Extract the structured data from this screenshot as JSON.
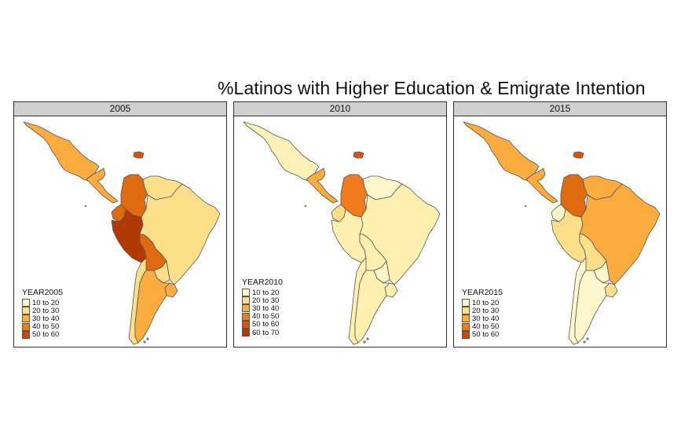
{
  "title": "%Latinos with Higher Education & Emigrate Intention",
  "colors": {
    "c1": "#fff7cc",
    "c2": "#fddf8a",
    "c3": "#fbac3f",
    "c4": "#f07a1c",
    "c5": "#d9530c",
    "c6": "#b03a05",
    "border": "#555555"
  },
  "panels": [
    {
      "strip": "2005",
      "legend": {
        "title": "YEAR2005",
        "items": [
          {
            "label": "10 to 20",
            "color": "#fff7cc"
          },
          {
            "label": "20 to 30",
            "color": "#fddf8a"
          },
          {
            "label": "30 to 40",
            "color": "#fbac3f"
          },
          {
            "label": "40 to 50",
            "color": "#f07a1c"
          },
          {
            "label": "50 to 60",
            "color": "#c9480a"
          }
        ]
      },
      "fills": {
        "mexico": "#fbac3f",
        "centralam": "#fbac3f",
        "caribbean": "#d9530c",
        "colombia": "#e06a10",
        "venezuela": "#fddf8a",
        "ecuador": "#e06a10",
        "peru": "#b03a05",
        "brazil": "#fddf8a",
        "bolivia": "#e06a10",
        "paraguay": "#fddf8a",
        "uruguay": "#fbac3f",
        "argentina": "#fbac3f",
        "chile": "#fddf8a"
      }
    },
    {
      "strip": "2010",
      "legend": {
        "title": "YEAR2010",
        "items": [
          {
            "label": "10 to 20",
            "color": "#fff7cc"
          },
          {
            "label": "20 to 30",
            "color": "#fddf8a"
          },
          {
            "label": "30 to 40",
            "color": "#fbac3f"
          },
          {
            "label": "40 to 50",
            "color": "#f07a1c"
          },
          {
            "label": "50 to 60",
            "color": "#d9530c"
          },
          {
            "label": "60 to 70",
            "color": "#b03a05"
          }
        ]
      },
      "fills": {
        "mexico": "#fff2b8",
        "centralam": "#fbac3f",
        "caribbean": "#d9530c",
        "colombia": "#f07a1c",
        "venezuela": "#fff7cc",
        "ecuador": "#fddf8a",
        "peru": "#fff0b0",
        "brazil": "#fff0b0",
        "bolivia": "#fff0b0",
        "paraguay": "#fff7cc",
        "uruguay": "#fff0b0",
        "argentina": "#fff0b0",
        "chile": "#fff0b0"
      }
    },
    {
      "strip": "2015",
      "legend": {
        "title": "YEAR2015",
        "items": [
          {
            "label": "10 to 20",
            "color": "#fff7cc"
          },
          {
            "label": "20 to 30",
            "color": "#fddf8a"
          },
          {
            "label": "30 to 40",
            "color": "#fbac3f"
          },
          {
            "label": "40 to 50",
            "color": "#f07a1c"
          },
          {
            "label": "50 to 60",
            "color": "#c9480a"
          }
        ]
      },
      "fills": {
        "mexico": "#fbac3f",
        "centralam": "#fbac3f",
        "caribbean": "#d9530c",
        "colombia": "#e06a10",
        "venezuela": "#fbac3f",
        "ecuador": "#fff7cc",
        "peru": "#fddf8a",
        "brazil": "#fbac3f",
        "bolivia": "#fddf8a",
        "paraguay": "#fff7cc",
        "uruguay": "#fddf8a",
        "argentina": "#fff7cc",
        "chile": "#fff7cc"
      }
    }
  ]
}
